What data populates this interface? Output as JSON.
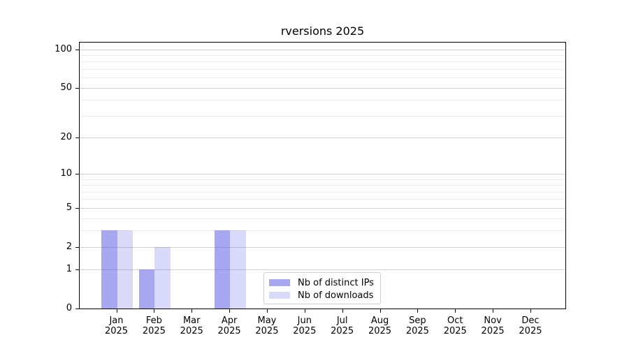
{
  "chart_data": {
    "type": "bar",
    "title": "rversions 2025",
    "categories": [
      "Jan",
      "Feb",
      "Mar",
      "Apr",
      "May",
      "Jun",
      "Jul",
      "Aug",
      "Sep",
      "Oct",
      "Nov",
      "Dec"
    ],
    "x_year_label": "2025",
    "series": [
      {
        "name": "Nb of distinct IPs",
        "values": [
          3,
          1,
          0,
          3,
          0,
          0,
          0,
          0,
          0,
          0,
          0,
          0
        ],
        "color": "rgba(80,80,230,0.5)"
      },
      {
        "name": "Nb of downloads",
        "values": [
          3,
          2,
          0,
          3,
          0,
          0,
          0,
          0,
          0,
          0,
          0,
          0
        ],
        "color": "rgba(80,80,230,0.22)"
      }
    ],
    "y_ticks": [
      0,
      1,
      2,
      5,
      10,
      20,
      50,
      100
    ],
    "y_minor_ticks": [
      3,
      4,
      6,
      7,
      8,
      9,
      30,
      40,
      60,
      70,
      80,
      90
    ],
    "y_scale": "log1p",
    "ylim": [
      0,
      113
    ],
    "xlabel": "",
    "ylabel": "",
    "grid": true,
    "legend_position": "lower-center-inside"
  },
  "colors": {
    "grid_major": "#d2d2d2",
    "grid_minor": "#ededed",
    "axis": "#000000",
    "legend_border": "#cccccc",
    "background": "#ffffff"
  }
}
